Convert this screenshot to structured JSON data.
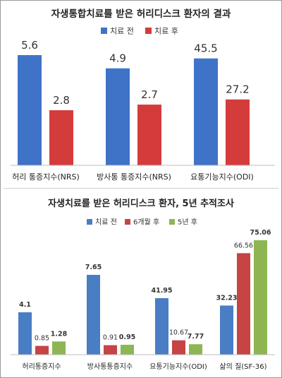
{
  "chart_data": [
    {
      "type": "bar",
      "title": "자생통합치료를 받은 허리디스크 환자의 결과",
      "categories": [
        "허리 통증지수(NRS)",
        "방사통 통증지수(NRS)",
        "요통기능지수(ODI)"
      ],
      "series": [
        {
          "name": "치료 전",
          "values": [
            5.6,
            4.9,
            45.5
          ],
          "labels": [
            "5.6",
            "4.9",
            "45.5"
          ],
          "color": "#3F73C8"
        },
        {
          "name": "치료 후",
          "values": [
            2.8,
            2.7,
            27.2
          ],
          "labels": [
            "2.8",
            "2.7",
            "27.2"
          ],
          "color": "#D43C3C"
        }
      ],
      "legend_position": "top-center",
      "grid": false
    },
    {
      "type": "bar",
      "title": "자생치료를 받은 허리디스크 환자, 5년  추적조사",
      "categories": [
        "허리통증지수",
        "방사통통증지수",
        "요통기능지수(ODI)",
        "삶의 질(SF-36)"
      ],
      "series": [
        {
          "name": "치료 전",
          "values": [
            4.1,
            7.65,
            41.95,
            32.23
          ],
          "labels": [
            "4.1",
            "7.65",
            "41.95",
            "32.23"
          ],
          "color": "#4A7EC4"
        },
        {
          "name": "6개월 후",
          "values": [
            0.85,
            0.91,
            10.67,
            66.56
          ],
          "labels": [
            "0.85",
            "0.91",
            "10.67",
            "66.56"
          ],
          "color": "#C64444"
        },
        {
          "name": "5년 후",
          "values": [
            1.28,
            0.95,
            7.77,
            75.06
          ],
          "labels": [
            "1.28",
            "0.95",
            "7.77",
            "75.06"
          ],
          "color": "#8DB652"
        }
      ],
      "legend_position": "top-center",
      "grid": false
    }
  ]
}
